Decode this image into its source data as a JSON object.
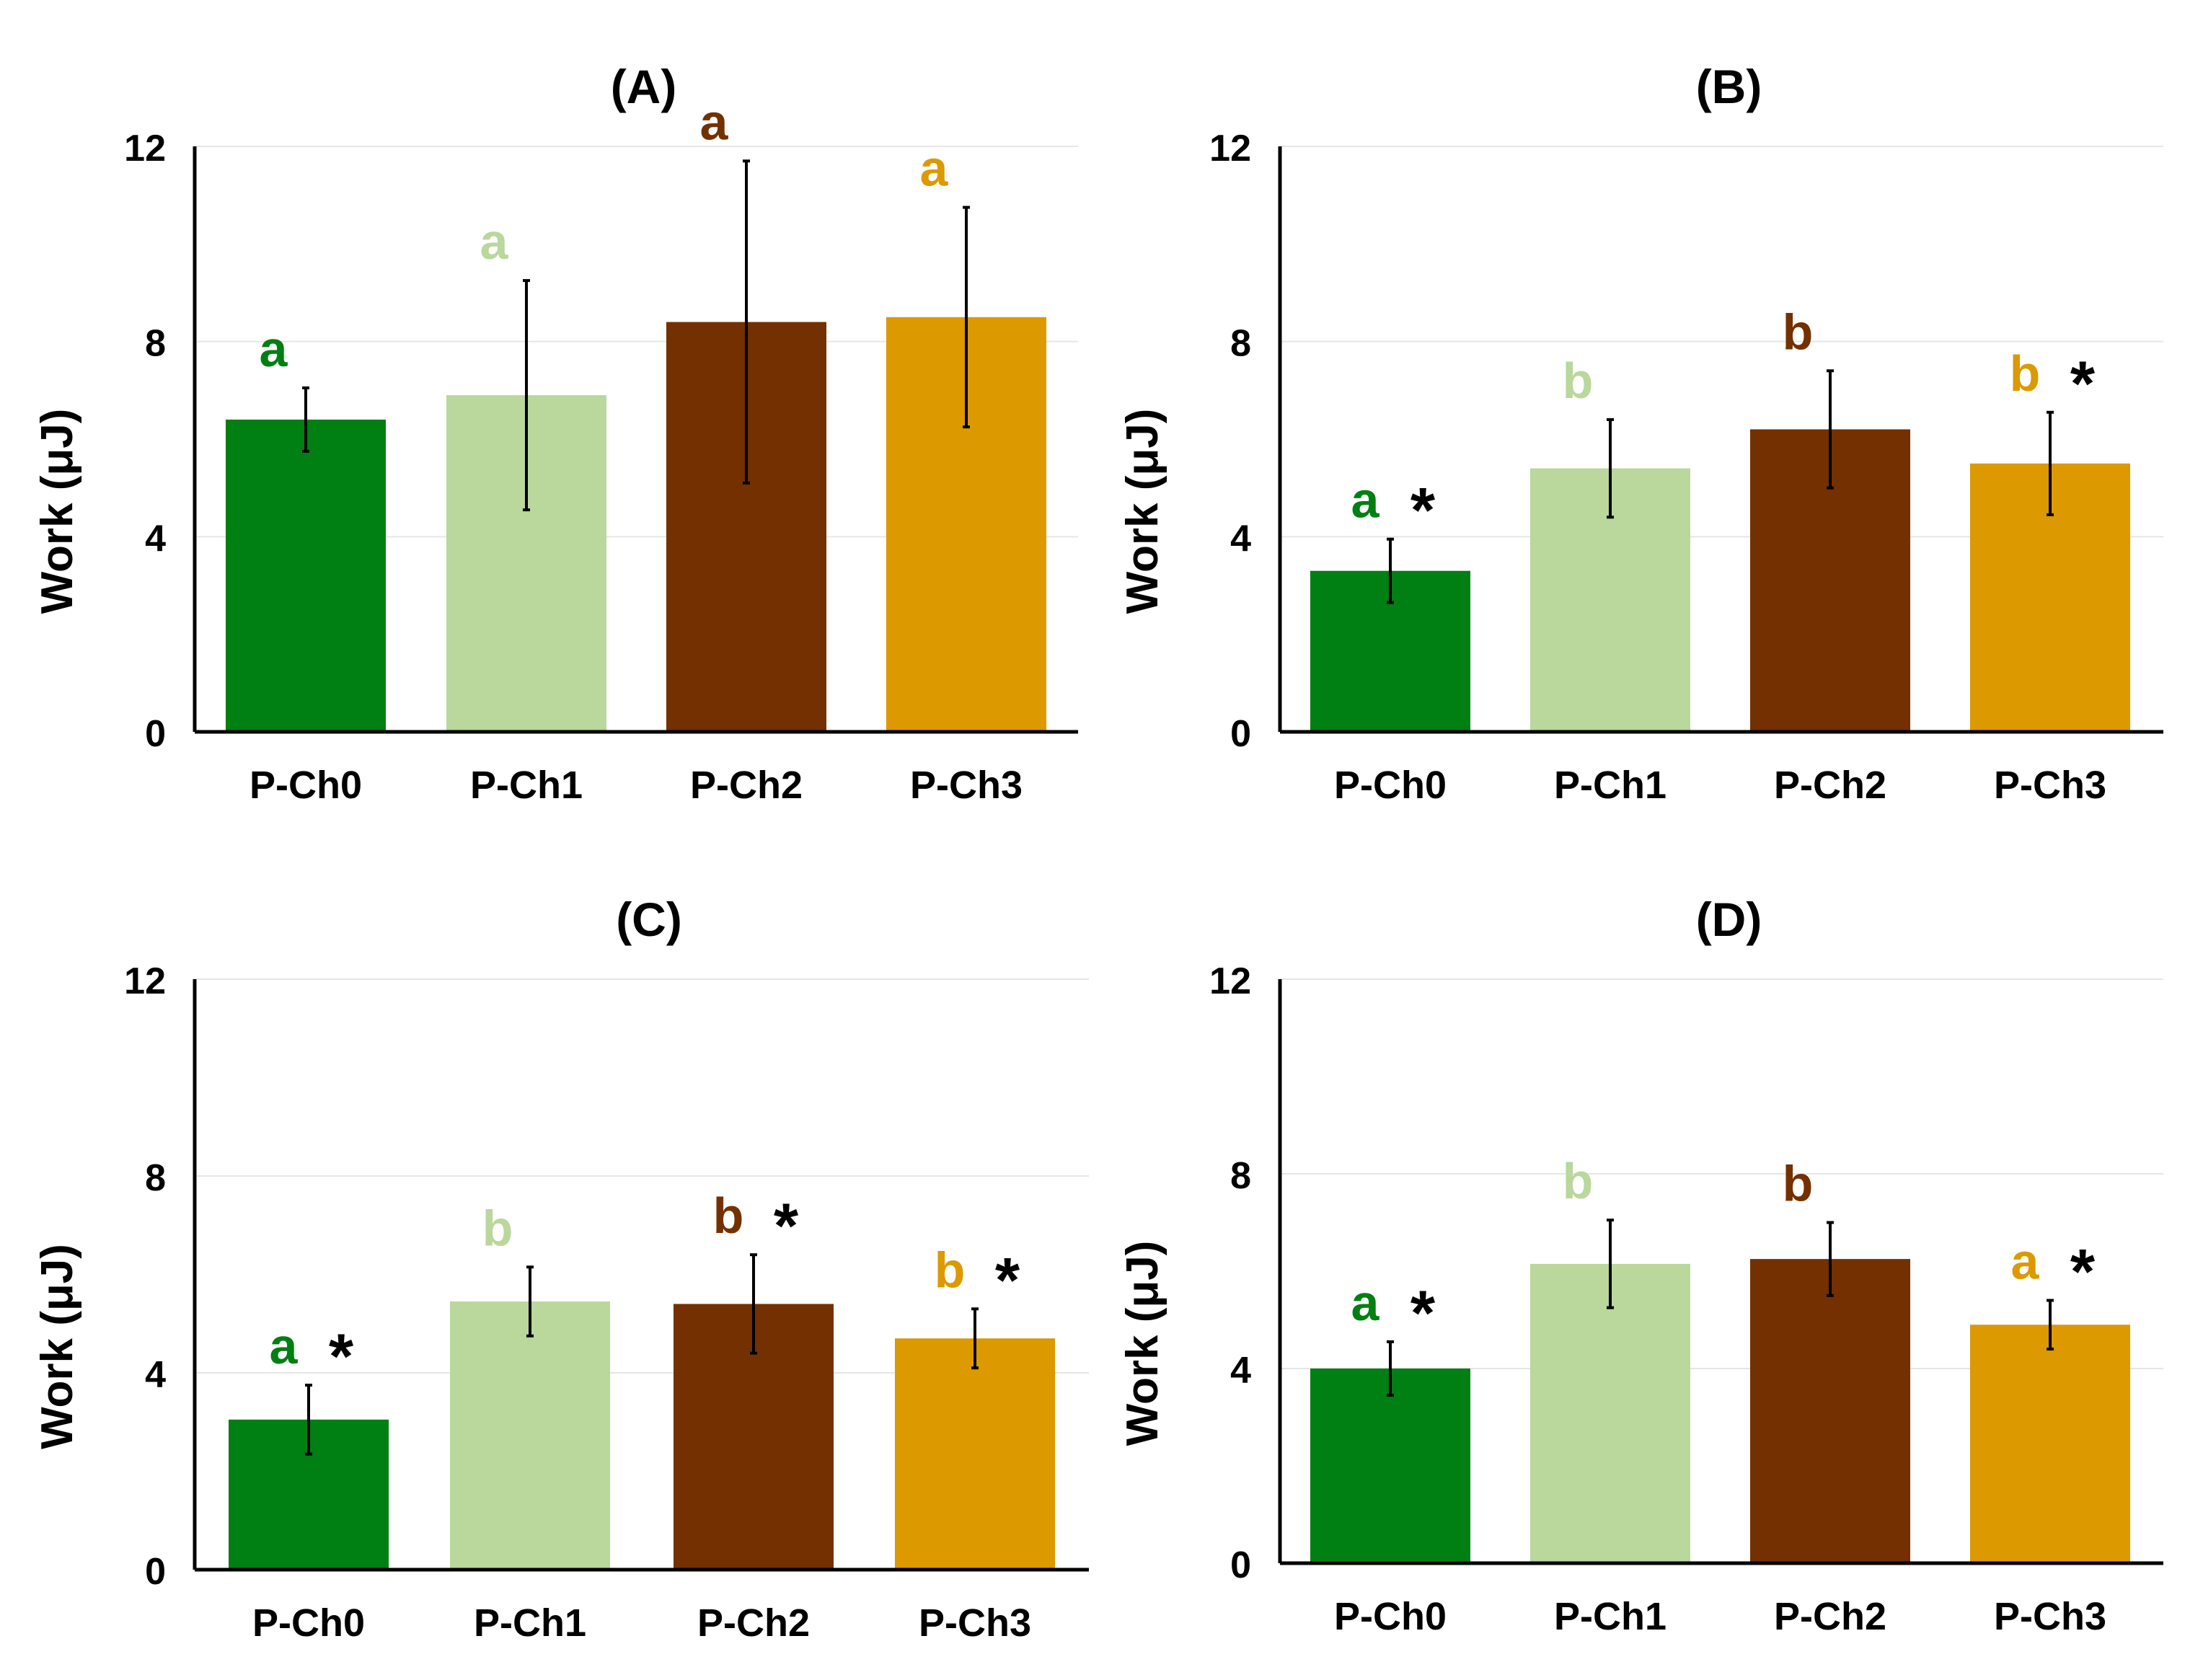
{
  "figure": {
    "colors": {
      "P-Ch0": "#007f12",
      "P-Ch1": "#bad79c",
      "P-Ch2": "#743000",
      "P-Ch3": "#dc9900",
      "axis": "#000000",
      "grid": "#e6e6e6",
      "error_bar": "#000000",
      "star": "#000000"
    }
  },
  "chart_data": [
    {
      "type": "bar",
      "title": "(A)",
      "xlabel": "",
      "ylabel": "Work (μJ)",
      "ylim": [
        0,
        12
      ],
      "yticks": [
        "0",
        "4",
        "8",
        "12"
      ],
      "grid": true,
      "categories": [
        "P-Ch0",
        "P-Ch1",
        "P-Ch2",
        "P-Ch3"
      ],
      "values": [
        6.4,
        6.9,
        8.4,
        8.5
      ],
      "error": [
        0.65,
        2.35,
        3.3,
        2.25
      ],
      "letters": [
        "a",
        "a",
        "a",
        "a"
      ],
      "stars": [
        false,
        false,
        false,
        false
      ]
    },
    {
      "type": "bar",
      "title": "(B)",
      "xlabel": "",
      "ylabel": "Work (μJ)",
      "ylim": [
        0,
        12
      ],
      "yticks": [
        "0",
        "4",
        "8",
        "12"
      ],
      "grid": true,
      "categories": [
        "P-Ch0",
        "P-Ch1",
        "P-Ch2",
        "P-Ch3"
      ],
      "values": [
        3.3,
        5.4,
        6.2,
        5.5
      ],
      "error": [
        0.65,
        1.0,
        1.2,
        1.05
      ],
      "letters": [
        "a",
        "b",
        "b",
        "b"
      ],
      "stars": [
        true,
        false,
        false,
        true
      ]
    },
    {
      "type": "bar",
      "title": "(C)",
      "xlabel": "",
      "ylabel": "Work (μJ)",
      "ylim": [
        0,
        12
      ],
      "yticks": [
        "0",
        "4",
        "8",
        "12"
      ],
      "grid": true,
      "categories": [
        "P-Ch0",
        "P-Ch1",
        "P-Ch2",
        "P-Ch3"
      ],
      "values": [
        3.05,
        5.45,
        5.4,
        4.7
      ],
      "error": [
        0.7,
        0.7,
        1.0,
        0.6
      ],
      "letters": [
        "a",
        "b",
        "b",
        "b"
      ],
      "stars": [
        true,
        false,
        true,
        true
      ]
    },
    {
      "type": "bar",
      "title": "(D)",
      "xlabel": "",
      "ylabel": "Work (μJ)",
      "ylim": [
        0,
        12
      ],
      "yticks": [
        "0",
        "4",
        "8",
        "12"
      ],
      "grid": true,
      "categories": [
        "P-Ch0",
        "P-Ch1",
        "P-Ch2",
        "P-Ch3"
      ],
      "values": [
        4.0,
        6.15,
        6.25,
        4.9
      ],
      "error": [
        0.55,
        0.9,
        0.75,
        0.5
      ],
      "letters": [
        "a",
        "b",
        "b",
        "a"
      ],
      "stars": [
        true,
        false,
        false,
        true
      ]
    }
  ]
}
